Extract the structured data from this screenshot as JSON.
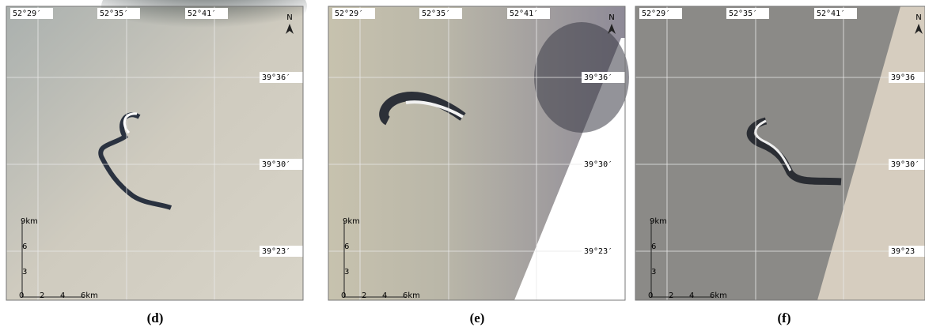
{
  "panels": [
    {
      "caption": "(d)",
      "lon_labels": [
        "52°29′",
        "52°35′",
        "52°41′"
      ],
      "lat_labels": [
        "39°36′",
        "39°30′",
        "39°23′"
      ],
      "north": "N",
      "scale_y_labels": [
        "9km",
        "6",
        "3"
      ],
      "scale_x_labels": [
        "0",
        "2",
        "4",
        "6km"
      ]
    },
    {
      "caption": "(e)",
      "lon_labels": [
        "52°29′",
        "52°35′",
        "52°41′"
      ],
      "lat_labels": [
        "39°36′",
        "39°30′",
        "39°23′"
      ],
      "north": "N",
      "scale_y_labels": [
        "9km",
        "6",
        "3"
      ],
      "scale_x_labels": [
        "0",
        "2",
        "4",
        "6km"
      ]
    },
    {
      "caption": "(f)",
      "lon_labels": [
        "52°29′",
        "52°35′",
        "52°41′"
      ],
      "lat_labels": [
        "39°36",
        "39°30′",
        "39°23"
      ],
      "north": "N",
      "scale_y_labels": [
        "9km",
        "6",
        "3"
      ],
      "scale_x_labels": [
        "0",
        "2",
        "4",
        "6km"
      ]
    }
  ]
}
